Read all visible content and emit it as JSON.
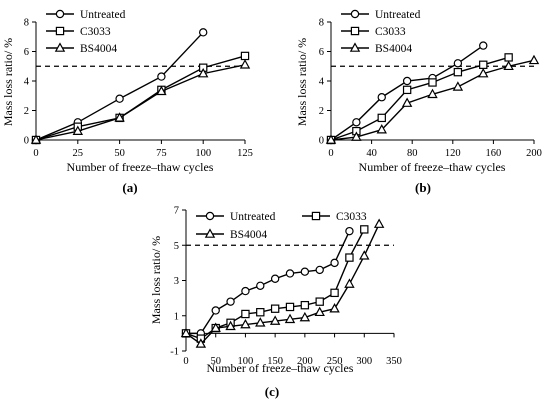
{
  "chart_data": [
    {
      "type": "line",
      "panel_label": "(a)",
      "xlabel": "Number of freeze–thaw cycles",
      "ylabel": "Mass loss ratio/ %",
      "xlim": [
        0,
        125
      ],
      "ylim": [
        0,
        8
      ],
      "xticks": [
        0,
        25,
        50,
        75,
        100,
        125
      ],
      "yticks": [
        0,
        2,
        4,
        6,
        8
      ],
      "threshold": 5,
      "legend_position": "top-left",
      "series": [
        {
          "name": "Untreated",
          "marker": "circle",
          "x": [
            0,
            25,
            50,
            75,
            100
          ],
          "y": [
            0,
            1.2,
            2.8,
            4.3,
            7.3
          ]
        },
        {
          "name": "C3033",
          "marker": "square",
          "x": [
            0,
            25,
            50,
            75,
            100,
            125
          ],
          "y": [
            0,
            0.9,
            1.5,
            3.4,
            4.9,
            5.7
          ]
        },
        {
          "name": "BS4004",
          "marker": "triangle",
          "x": [
            0,
            25,
            50,
            75,
            100,
            125
          ],
          "y": [
            0,
            0.6,
            1.5,
            3.3,
            4.5,
            5.1
          ]
        }
      ]
    },
    {
      "type": "line",
      "panel_label": "(b)",
      "xlabel": "Number of freeze–thaw cycles",
      "ylabel": "Mass loss ratio/ %",
      "xlim": [
        0,
        200
      ],
      "ylim": [
        0,
        8
      ],
      "xticks": [
        0,
        40,
        80,
        120,
        160,
        200
      ],
      "yticks": [
        0,
        2,
        4,
        6,
        8
      ],
      "threshold": 5,
      "legend_position": "top-left",
      "series": [
        {
          "name": "Untreated",
          "marker": "circle",
          "x": [
            0,
            25,
            50,
            75,
            100,
            125,
            150
          ],
          "y": [
            0,
            1.2,
            2.9,
            4.0,
            4.2,
            5.2,
            6.4
          ]
        },
        {
          "name": "C3033",
          "marker": "square",
          "x": [
            0,
            25,
            50,
            75,
            100,
            125,
            150,
            175
          ],
          "y": [
            0,
            0.6,
            1.5,
            3.4,
            3.9,
            4.6,
            5.1,
            5.6
          ]
        },
        {
          "name": "BS4004",
          "marker": "triangle",
          "x": [
            0,
            25,
            50,
            75,
            100,
            125,
            150,
            175,
            200
          ],
          "y": [
            0,
            0.2,
            0.7,
            2.5,
            3.1,
            3.6,
            4.5,
            5.0,
            5.4
          ]
        }
      ]
    },
    {
      "type": "line",
      "panel_label": "(c)",
      "xlabel": "Number of freeze–thaw cycles",
      "ylabel": "Mass loss ratio/ %",
      "xlim": [
        0,
        350
      ],
      "ylim": [
        -1,
        7
      ],
      "xticks": [
        0,
        50,
        100,
        150,
        200,
        250,
        300,
        350
      ],
      "yticks": [
        -1,
        1,
        3,
        5,
        7
      ],
      "threshold": 5,
      "legend_position": "top",
      "series": [
        {
          "name": "Untreated",
          "marker": "circle",
          "x": [
            0,
            25,
            50,
            75,
            100,
            125,
            150,
            175,
            200,
            225,
            250,
            275
          ],
          "y": [
            0,
            0,
            1.3,
            1.8,
            2.4,
            2.7,
            3.1,
            3.4,
            3.5,
            3.6,
            4.0,
            5.8
          ]
        },
        {
          "name": "C3033",
          "marker": "square",
          "x": [
            0,
            25,
            50,
            75,
            100,
            125,
            150,
            175,
            200,
            225,
            250,
            275,
            300
          ],
          "y": [
            0,
            -0.3,
            0.3,
            0.6,
            1.1,
            1.2,
            1.4,
            1.5,
            1.6,
            1.8,
            2.3,
            4.3,
            5.9
          ]
        },
        {
          "name": "BS4004",
          "marker": "triangle",
          "x": [
            0,
            25,
            50,
            75,
            100,
            125,
            150,
            175,
            200,
            225,
            250,
            275,
            300,
            325
          ],
          "y": [
            0,
            -0.6,
            0.3,
            0.4,
            0.5,
            0.6,
            0.7,
            0.8,
            0.9,
            1.2,
            1.4,
            2.8,
            4.4,
            6.2
          ]
        }
      ]
    }
  ]
}
